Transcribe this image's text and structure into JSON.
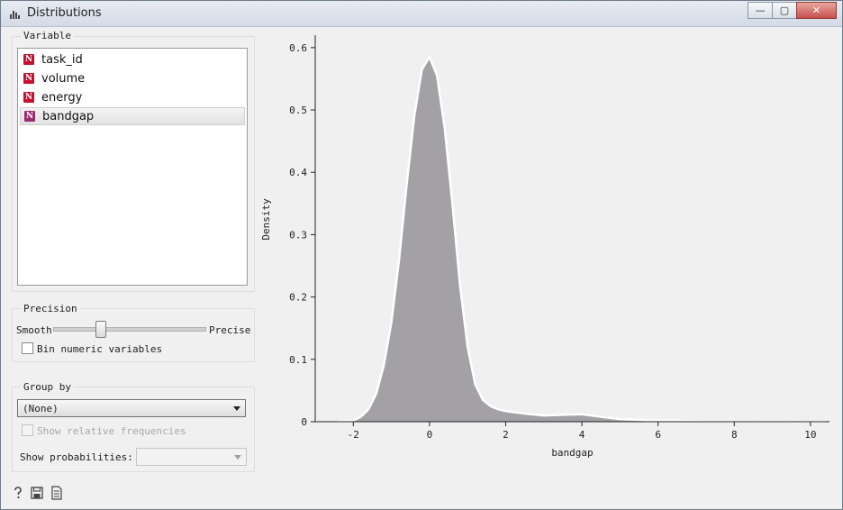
{
  "window": {
    "title": "Distributions",
    "min_glyph": "—",
    "max_glyph": "▢",
    "close_glyph": "✕"
  },
  "variable_group": {
    "title": "Variable",
    "items": [
      {
        "label": "task_id",
        "type": "N"
      },
      {
        "label": "volume",
        "type": "N"
      },
      {
        "label": "energy",
        "type": "N"
      },
      {
        "label": "bandgap",
        "type": "N",
        "selected": true
      }
    ]
  },
  "precision_group": {
    "title": "Precision",
    "smooth_label": "Smooth",
    "precise_label": "Precise",
    "slider_value_fraction": 0.3,
    "bin_label": "Bin numeric variables",
    "bin_checked": false
  },
  "groupby_group": {
    "title": "Group by",
    "selected": "(None)",
    "relative_label": "Show relative frequencies",
    "relative_checked": false,
    "probabilities_label": "Show probabilities:",
    "probabilities_value": ""
  },
  "footer": {
    "icons": [
      "help-icon",
      "save-icon",
      "report-icon"
    ]
  },
  "colors": {
    "fill": "#a3a1a6",
    "outline": "#ffffff"
  },
  "chart_data": {
    "type": "area",
    "xlabel": "bandgap",
    "ylabel": "Density",
    "xlim": [
      -3,
      10.5
    ],
    "ylim": [
      0,
      0.62
    ],
    "xticks": [
      -2,
      0,
      2,
      4,
      6,
      8,
      10
    ],
    "yticks": [
      0,
      0.1,
      0.2,
      0.3,
      0.4,
      0.5,
      0.6
    ],
    "x": [
      -2.4,
      -2.0,
      -1.8,
      -1.6,
      -1.4,
      -1.2,
      -1.0,
      -0.8,
      -0.6,
      -0.4,
      -0.2,
      0.0,
      0.2,
      0.4,
      0.6,
      0.8,
      1.0,
      1.2,
      1.4,
      1.6,
      1.8,
      2.0,
      2.5,
      3.0,
      3.5,
      4.0,
      4.5,
      5.0,
      6.0,
      7.0,
      8.0,
      9.0,
      10.4
    ],
    "y": [
      0,
      0.002,
      0.008,
      0.02,
      0.045,
      0.09,
      0.16,
      0.26,
      0.38,
      0.49,
      0.565,
      0.585,
      0.555,
      0.47,
      0.35,
      0.22,
      0.12,
      0.06,
      0.035,
      0.025,
      0.02,
      0.017,
      0.013,
      0.01,
      0.011,
      0.012,
      0.008,
      0.004,
      0.002,
      0.001,
      0.0005,
      0.0002,
      0
    ],
    "grid": false,
    "legend": "none"
  }
}
